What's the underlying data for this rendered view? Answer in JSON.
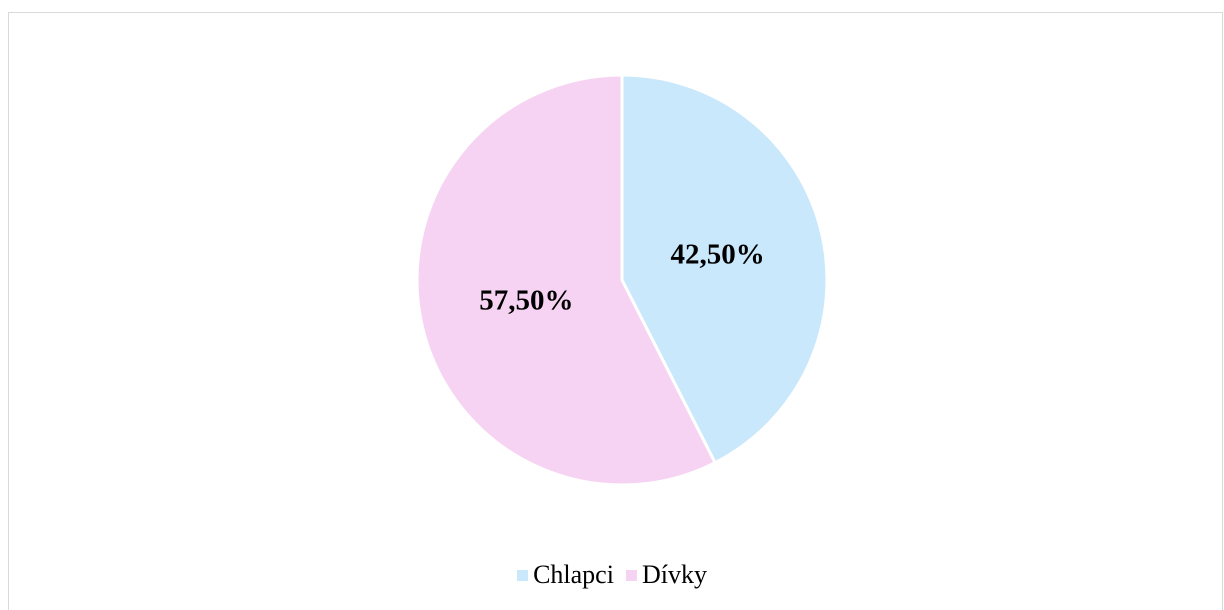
{
  "chart_data": {
    "type": "pie",
    "categories": [
      "Chlapci",
      "Dívky"
    ],
    "values": [
      42.5,
      57.5
    ],
    "value_labels": [
      "42,50%",
      "57,50%"
    ],
    "colors": [
      "#c9e8fb",
      "#f6d3f2"
    ],
    "legend": "bottom"
  }
}
